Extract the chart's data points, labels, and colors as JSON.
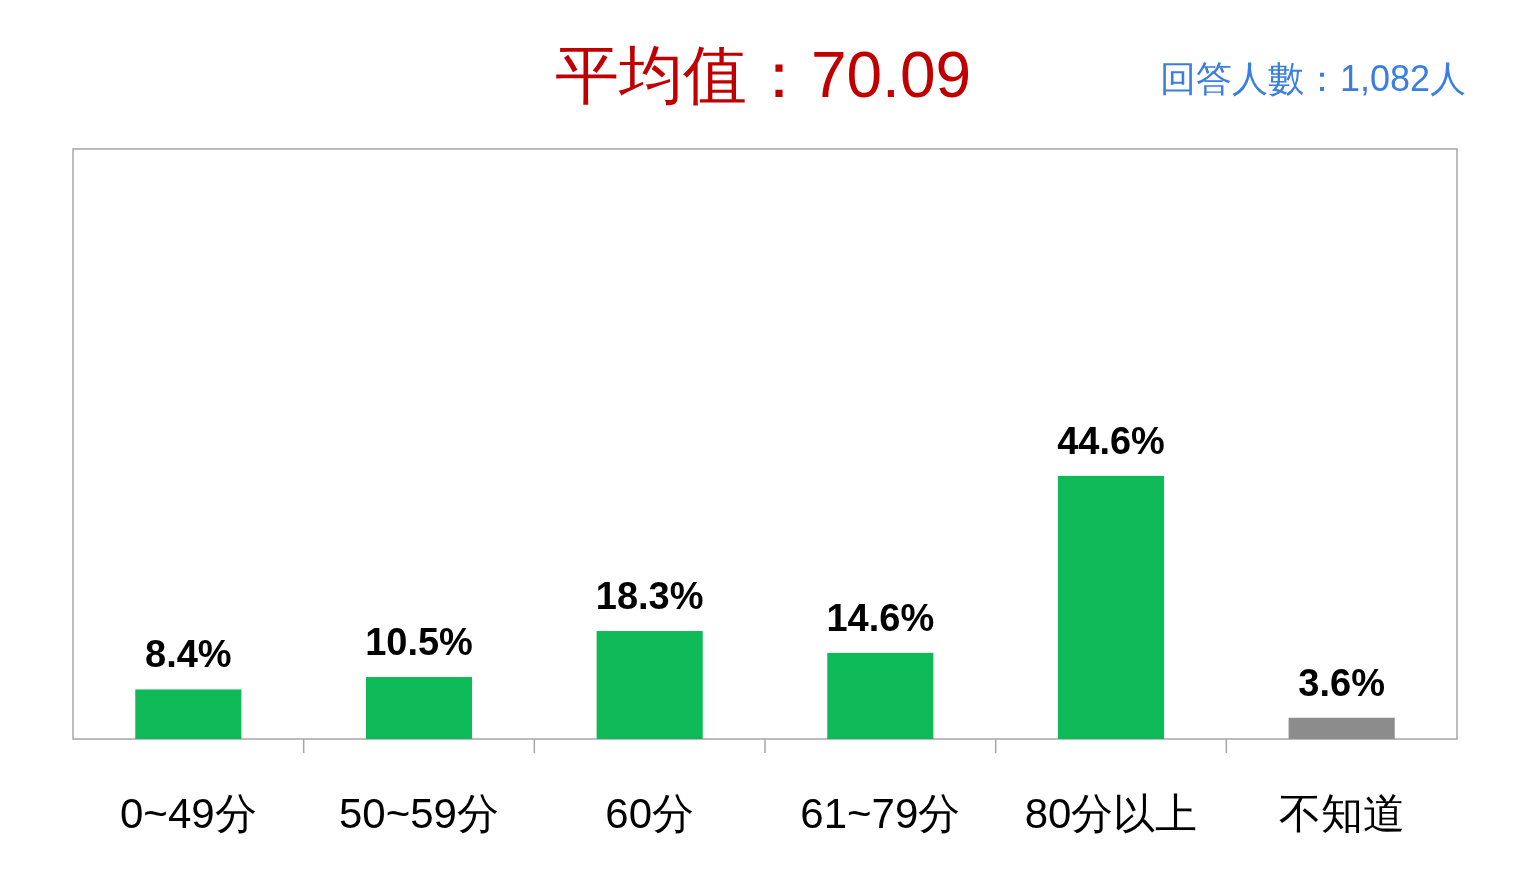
{
  "chart_data": {
    "type": "bar",
    "title": "平均值：70.09",
    "subtitle": "回答人數：1,082人",
    "categories": [
      "0~49分",
      "50~59分",
      "60分",
      "61~79分",
      "80分以上",
      "不知道"
    ],
    "values": [
      8.4,
      10.5,
      18.3,
      14.6,
      44.6,
      3.6
    ],
    "value_labels": [
      "8.4%",
      "10.5%",
      "18.3%",
      "14.6%",
      "44.6%",
      "3.6%"
    ],
    "colors": [
      "#0dba57",
      "#0dba57",
      "#0dba57",
      "#0dba57",
      "#0dba57",
      "#8c8c8c"
    ],
    "tick_labels": "x"
  }
}
